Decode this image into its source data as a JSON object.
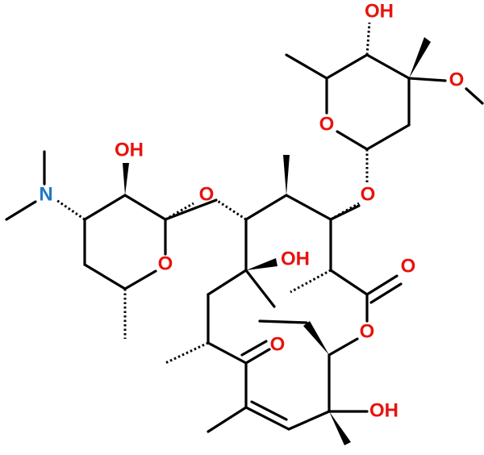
{
  "atoms": [
    {
      "label": "OH"
    },
    {
      "label": "O"
    },
    {
      "label": "O"
    },
    {
      "label": "OH"
    },
    {
      "label": "O"
    },
    {
      "label": "O"
    },
    {
      "label": "N"
    },
    {
      "label": "O"
    },
    {
      "label": "OH"
    },
    {
      "label": "O"
    },
    {
      "label": "O"
    },
    {
      "label": "O"
    },
    {
      "label": "OH"
    }
  ]
}
